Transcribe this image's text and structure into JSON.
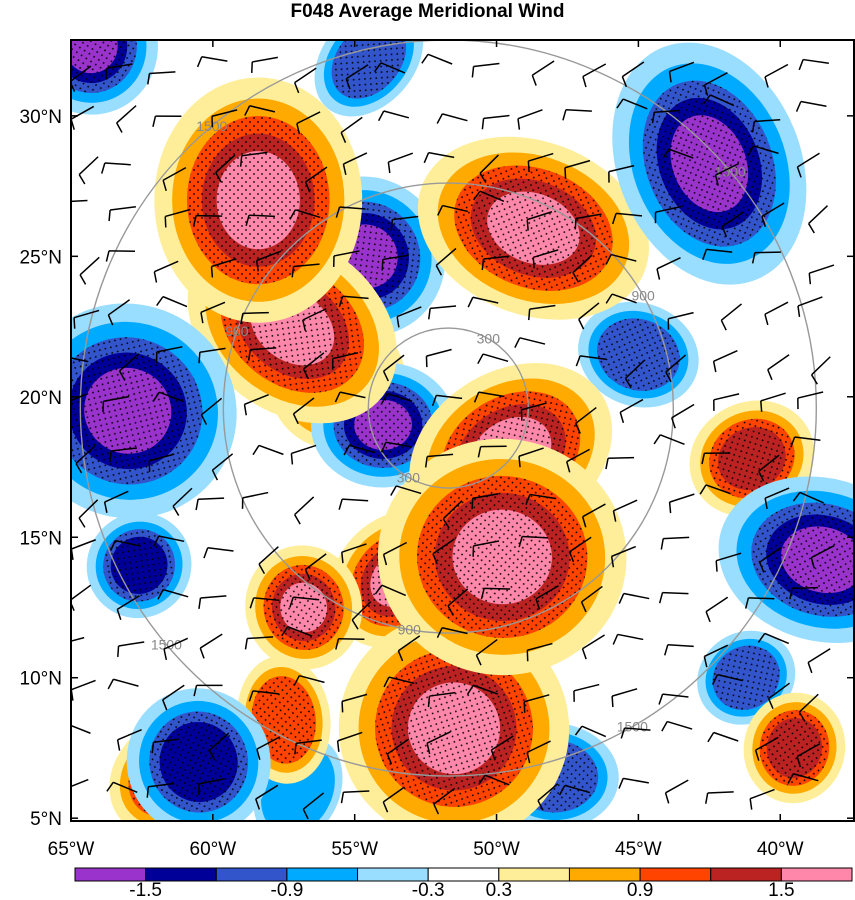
{
  "title": "F048 Average Meridional Wind",
  "chart_data": {
    "type": "heatmap",
    "title": "F048 Average Meridional Wind",
    "x_ticks": [
      "65°W",
      "60°W",
      "55°W",
      "50°W",
      "45°W",
      "40°W"
    ],
    "x_tick_values": [
      -65,
      -60,
      -55,
      -50,
      -45,
      -40
    ],
    "y_ticks": [
      "30°N",
      "25°N",
      "20°N",
      "15°N",
      "10°N",
      "5°N"
    ],
    "y_tick_values": [
      30,
      25,
      20,
      15,
      10,
      5
    ],
    "xlim": [
      -65,
      -37.4
    ],
    "ylim": [
      4.9,
      32.7
    ],
    "colorbar": {
      "labels": [
        "-1.5",
        "-0.9",
        "-0.3",
        "0.3",
        "0.9",
        "1.5"
      ],
      "label_values": [
        -1.5,
        -0.9,
        -0.3,
        0.3,
        0.9,
        1.5
      ],
      "colors": [
        "#9933cc",
        "#000099",
        "#3355cc",
        "#00aaff",
        "#99ddff",
        "#ffffff",
        "#ffee99",
        "#ffaa00",
        "#ff4400",
        "#bb2222",
        "#ff88aa"
      ]
    },
    "range_rings": {
      "center": [
        -51.7,
        19.6
      ],
      "labels": [
        "300",
        "900",
        "1500"
      ]
    },
    "blobs": [
      {
        "lon": -58.4,
        "lat": 27.0,
        "value": 2.2
      },
      {
        "lon": -57.2,
        "lat": 22.5,
        "value": 1.9
      },
      {
        "lon": -55.6,
        "lat": 20.5,
        "value": 1.8
      },
      {
        "lon": -48.7,
        "lat": 26.0,
        "value": 2.2
      },
      {
        "lon": -49.5,
        "lat": 18.0,
        "value": 2.0
      },
      {
        "lon": -49.8,
        "lat": 14.3,
        "value": 2.4
      },
      {
        "lon": -53.5,
        "lat": 13.5,
        "value": 1.8
      },
      {
        "lon": -56.8,
        "lat": 12.5,
        "value": 1.8
      },
      {
        "lon": -51.5,
        "lat": 8.2,
        "value": 2.0
      },
      {
        "lon": -41.0,
        "lat": 17.8,
        "value": 1.2
      },
      {
        "lon": -39.5,
        "lat": 7.5,
        "value": 1.3
      },
      {
        "lon": -61.5,
        "lat": 6.5,
        "value": 1.0
      },
      {
        "lon": -57.5,
        "lat": 8.5,
        "value": 0.9
      },
      {
        "lon": -63.0,
        "lat": 19.5,
        "value": -2.4
      },
      {
        "lon": -42.5,
        "lat": 28.3,
        "value": -2.5
      },
      {
        "lon": -38.5,
        "lat": 14.2,
        "value": -2.0
      },
      {
        "lon": -54.6,
        "lat": 25.0,
        "value": -1.8
      },
      {
        "lon": -54.0,
        "lat": 19.0,
        "value": -1.8
      },
      {
        "lon": -62.6,
        "lat": 14.0,
        "value": -1.3
      },
      {
        "lon": -60.5,
        "lat": 7.0,
        "value": -1.4
      },
      {
        "lon": -45.0,
        "lat": 21.5,
        "value": -1.0
      },
      {
        "lon": -41.2,
        "lat": 10.0,
        "value": -0.9
      },
      {
        "lon": -48.0,
        "lat": 6.5,
        "value": -1.0
      },
      {
        "lon": -54.5,
        "lat": 32.0,
        "value": -0.9
      },
      {
        "lon": -64.3,
        "lat": 32.5,
        "value": -1.6
      },
      {
        "lon": -57.0,
        "lat": 6.0,
        "value": -0.7
      }
    ]
  }
}
